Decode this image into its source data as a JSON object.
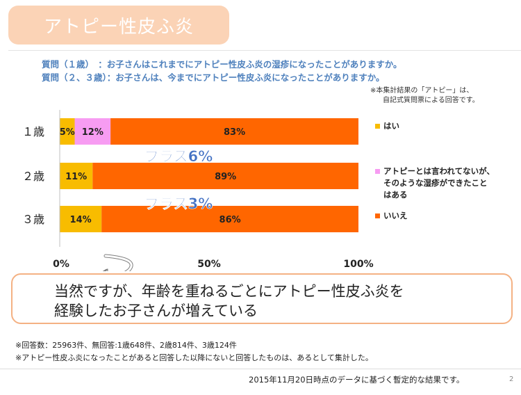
{
  "slide": {
    "title": "アトピー性皮ふ炎",
    "question1": "質問（１歳）　：お子さんはこれまでにアトピー性皮ふ炎の湿疹になったことがありますか。",
    "question2": "質問（２、３歳）：お子さんは、今までにアトピー性皮ふ炎になったことがありますか。",
    "note_line1": "※本集計結果の「アトピー」は、",
    "note_line2": "自記式質問票による回答です。",
    "conclusion_line1": "当然ですが、年齢を重ねるごとにアトピー性皮ふ炎を",
    "conclusion_line2": "経験したお子さんが増えている",
    "bottom_note1": "※回答数：25963件、無回答:1歳648件、2歳814件、3歳124件",
    "bottom_note2": "※アトピー性皮ふ炎になったことがあると回答した以降にないと回答したものは、あるとして集計した。",
    "footer": "2015年11月20日時点のデータに基づく暫定的な結果です。",
    "page_number": "2"
  },
  "legend": {
    "yes": "はい",
    "mid_line1": "アトピーとは言われてないが、",
    "mid_line2": "そのような湿疹ができたこと",
    "mid_line3": "はある",
    "no": "いいえ"
  },
  "colors": {
    "yes": "#f8bc00",
    "mid": "#f79cf2",
    "no": "#ff6600",
    "title_bg": "#fbd3b6",
    "question_text": "#4f81bd",
    "annotation_text": "#4472c4",
    "conclusion_border": "#f4b183"
  },
  "chart_data": {
    "type": "bar",
    "orientation": "horizontal",
    "stacked": true,
    "categories": [
      "１歳",
      "２歳",
      "３歳"
    ],
    "series": [
      {
        "name": "はい",
        "values": [
          5,
          11,
          14
        ],
        "labels": [
          "5%",
          "11%",
          "14%"
        ]
      },
      {
        "name": "アトピーとは言われてないが、そのような湿疹ができたことはある",
        "values": [
          12,
          0,
          0
        ],
        "labels": [
          "12%",
          "",
          ""
        ]
      },
      {
        "name": "いいえ",
        "values": [
          83,
          89,
          86
        ],
        "labels": [
          "83%",
          "89%",
          "86%"
        ]
      }
    ],
    "x_ticks": [
      "0%",
      "50%",
      "100%"
    ],
    "xlim": [
      0,
      100
    ],
    "annotations": [
      "プラス6%",
      "プラス3%"
    ],
    "grid": false,
    "legend_position": "right"
  }
}
